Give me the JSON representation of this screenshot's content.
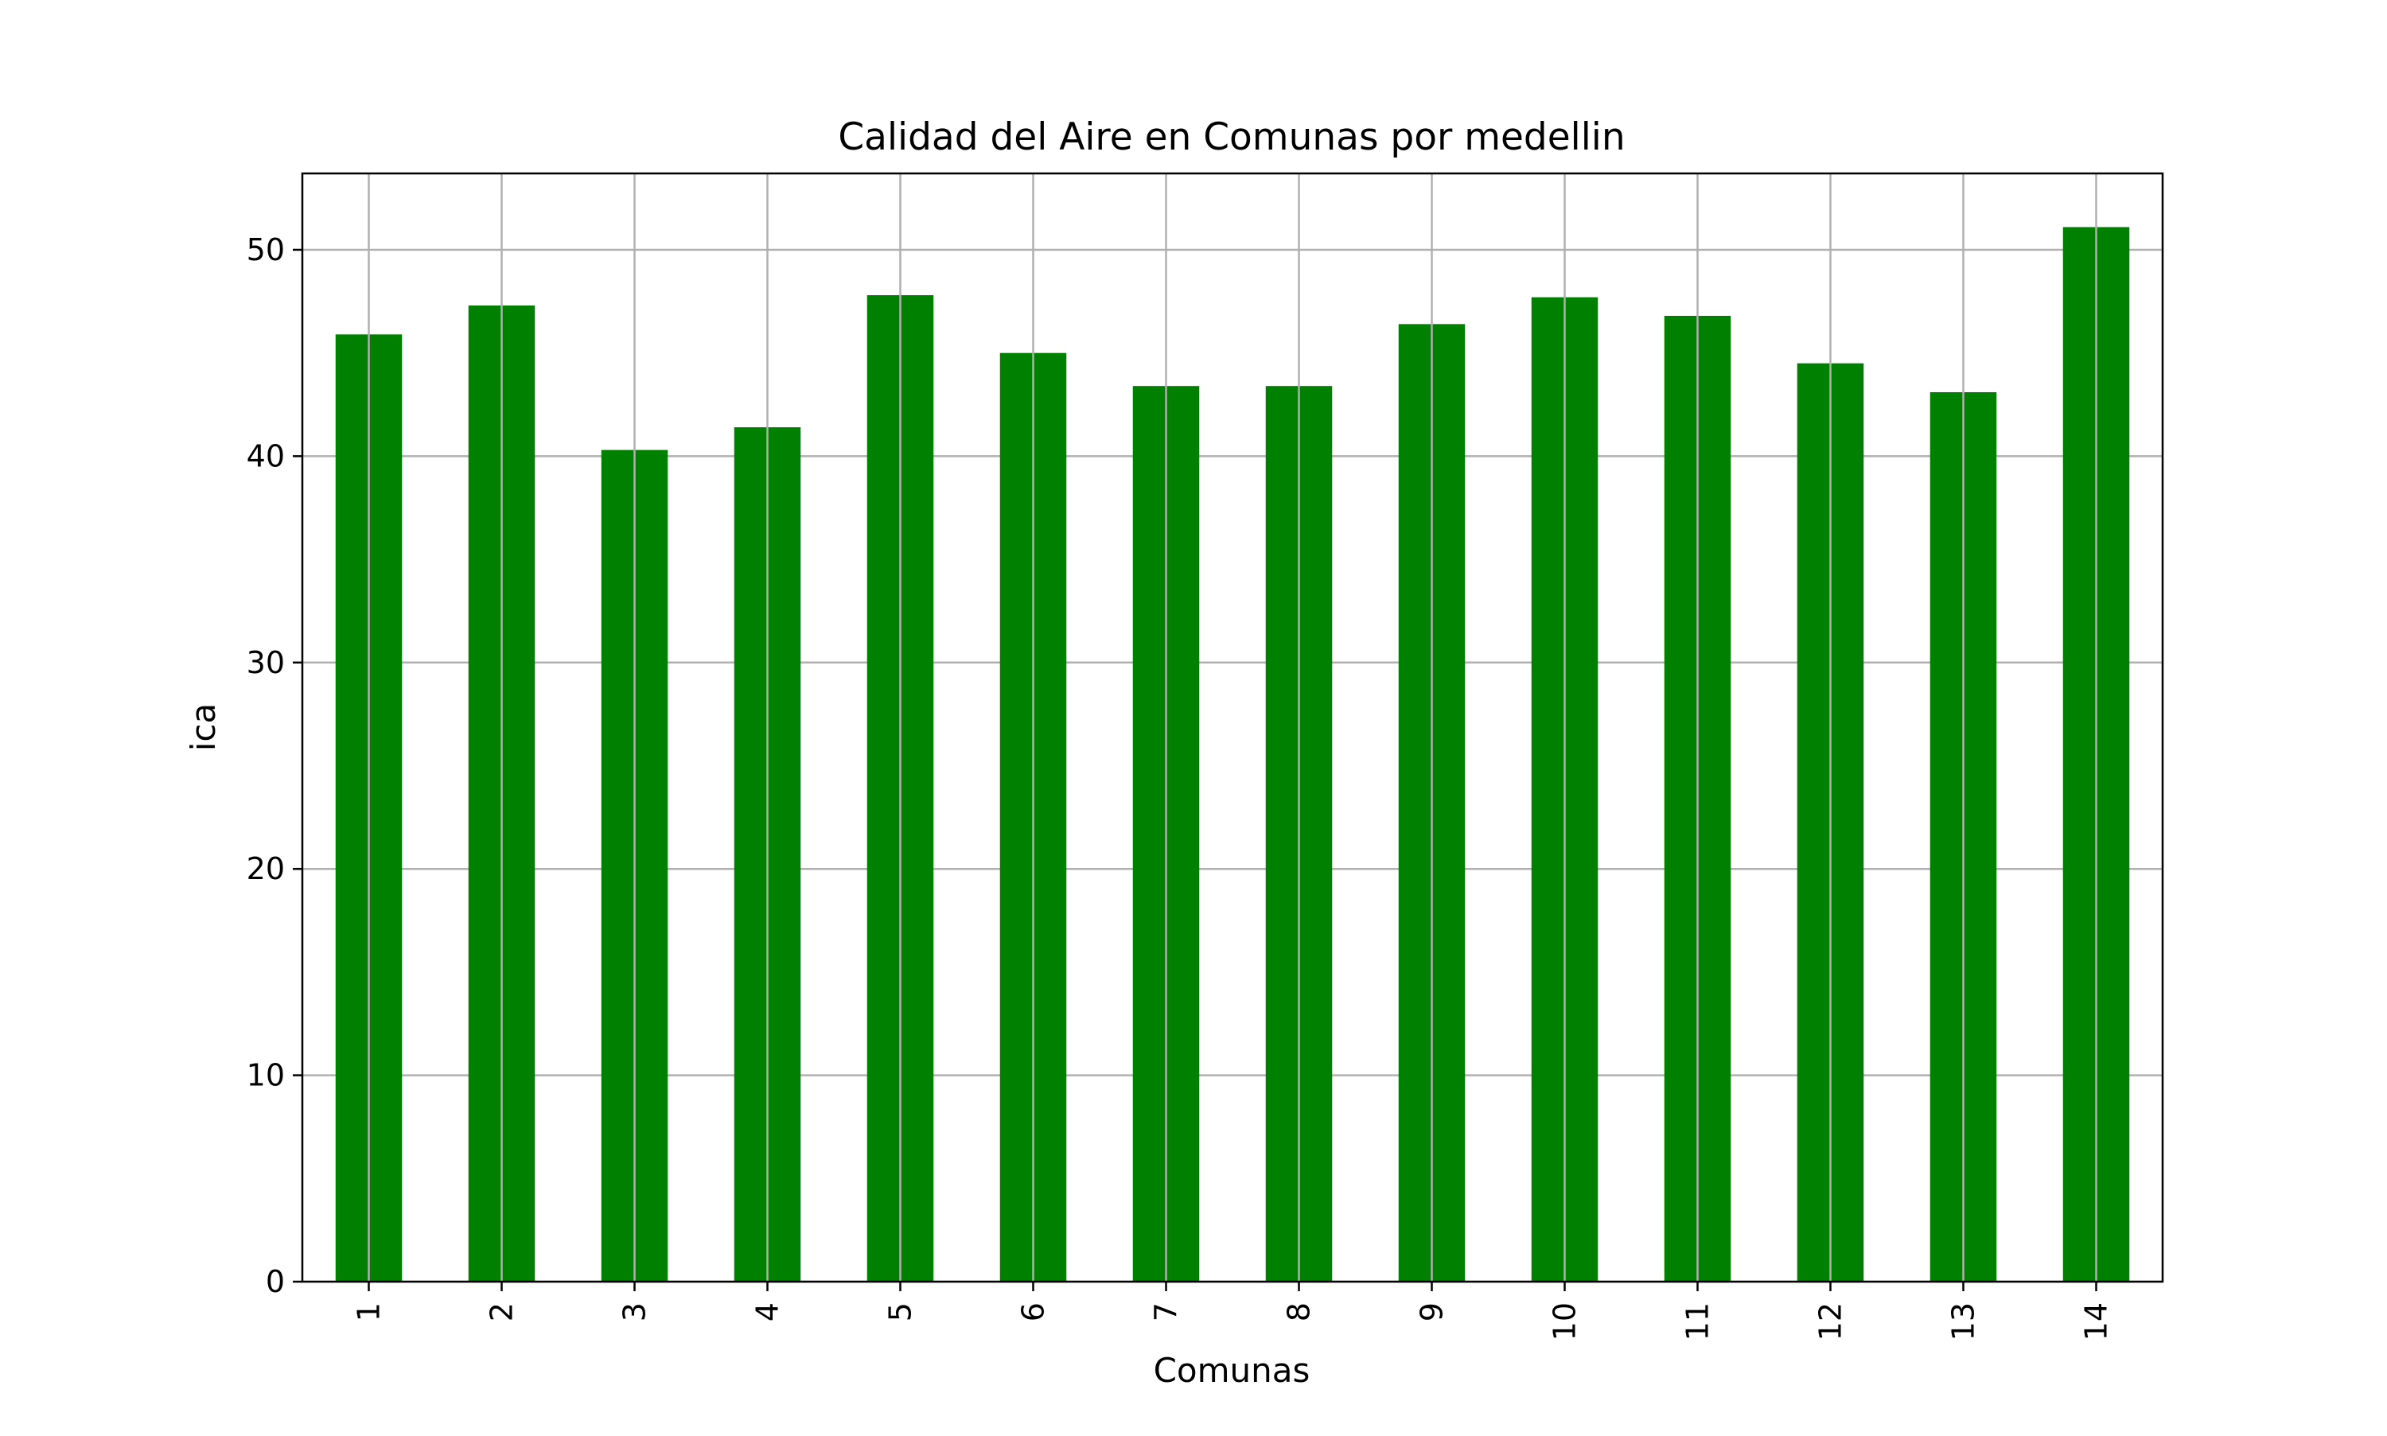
{
  "chart_data": {
    "type": "bar",
    "title": "Calidad del Aire en Comunas por medellin",
    "xlabel": "Comunas",
    "ylabel": "ica",
    "categories": [
      "1",
      "2",
      "3",
      "4",
      "5",
      "6",
      "7",
      "8",
      "9",
      "10",
      "11",
      "12",
      "13",
      "14"
    ],
    "values": [
      45.9,
      47.3,
      40.3,
      41.4,
      47.8,
      45.0,
      43.4,
      43.4,
      46.4,
      47.7,
      46.8,
      44.5,
      43.1,
      51.1
    ],
    "ylim": [
      0,
      53.7
    ],
    "yticks": [
      0,
      10,
      20,
      30,
      40,
      50
    ],
    "grid": true,
    "bar_color": "#008000",
    "grid_color": "#b0b0b0",
    "xtick_rotation": "vertical"
  }
}
